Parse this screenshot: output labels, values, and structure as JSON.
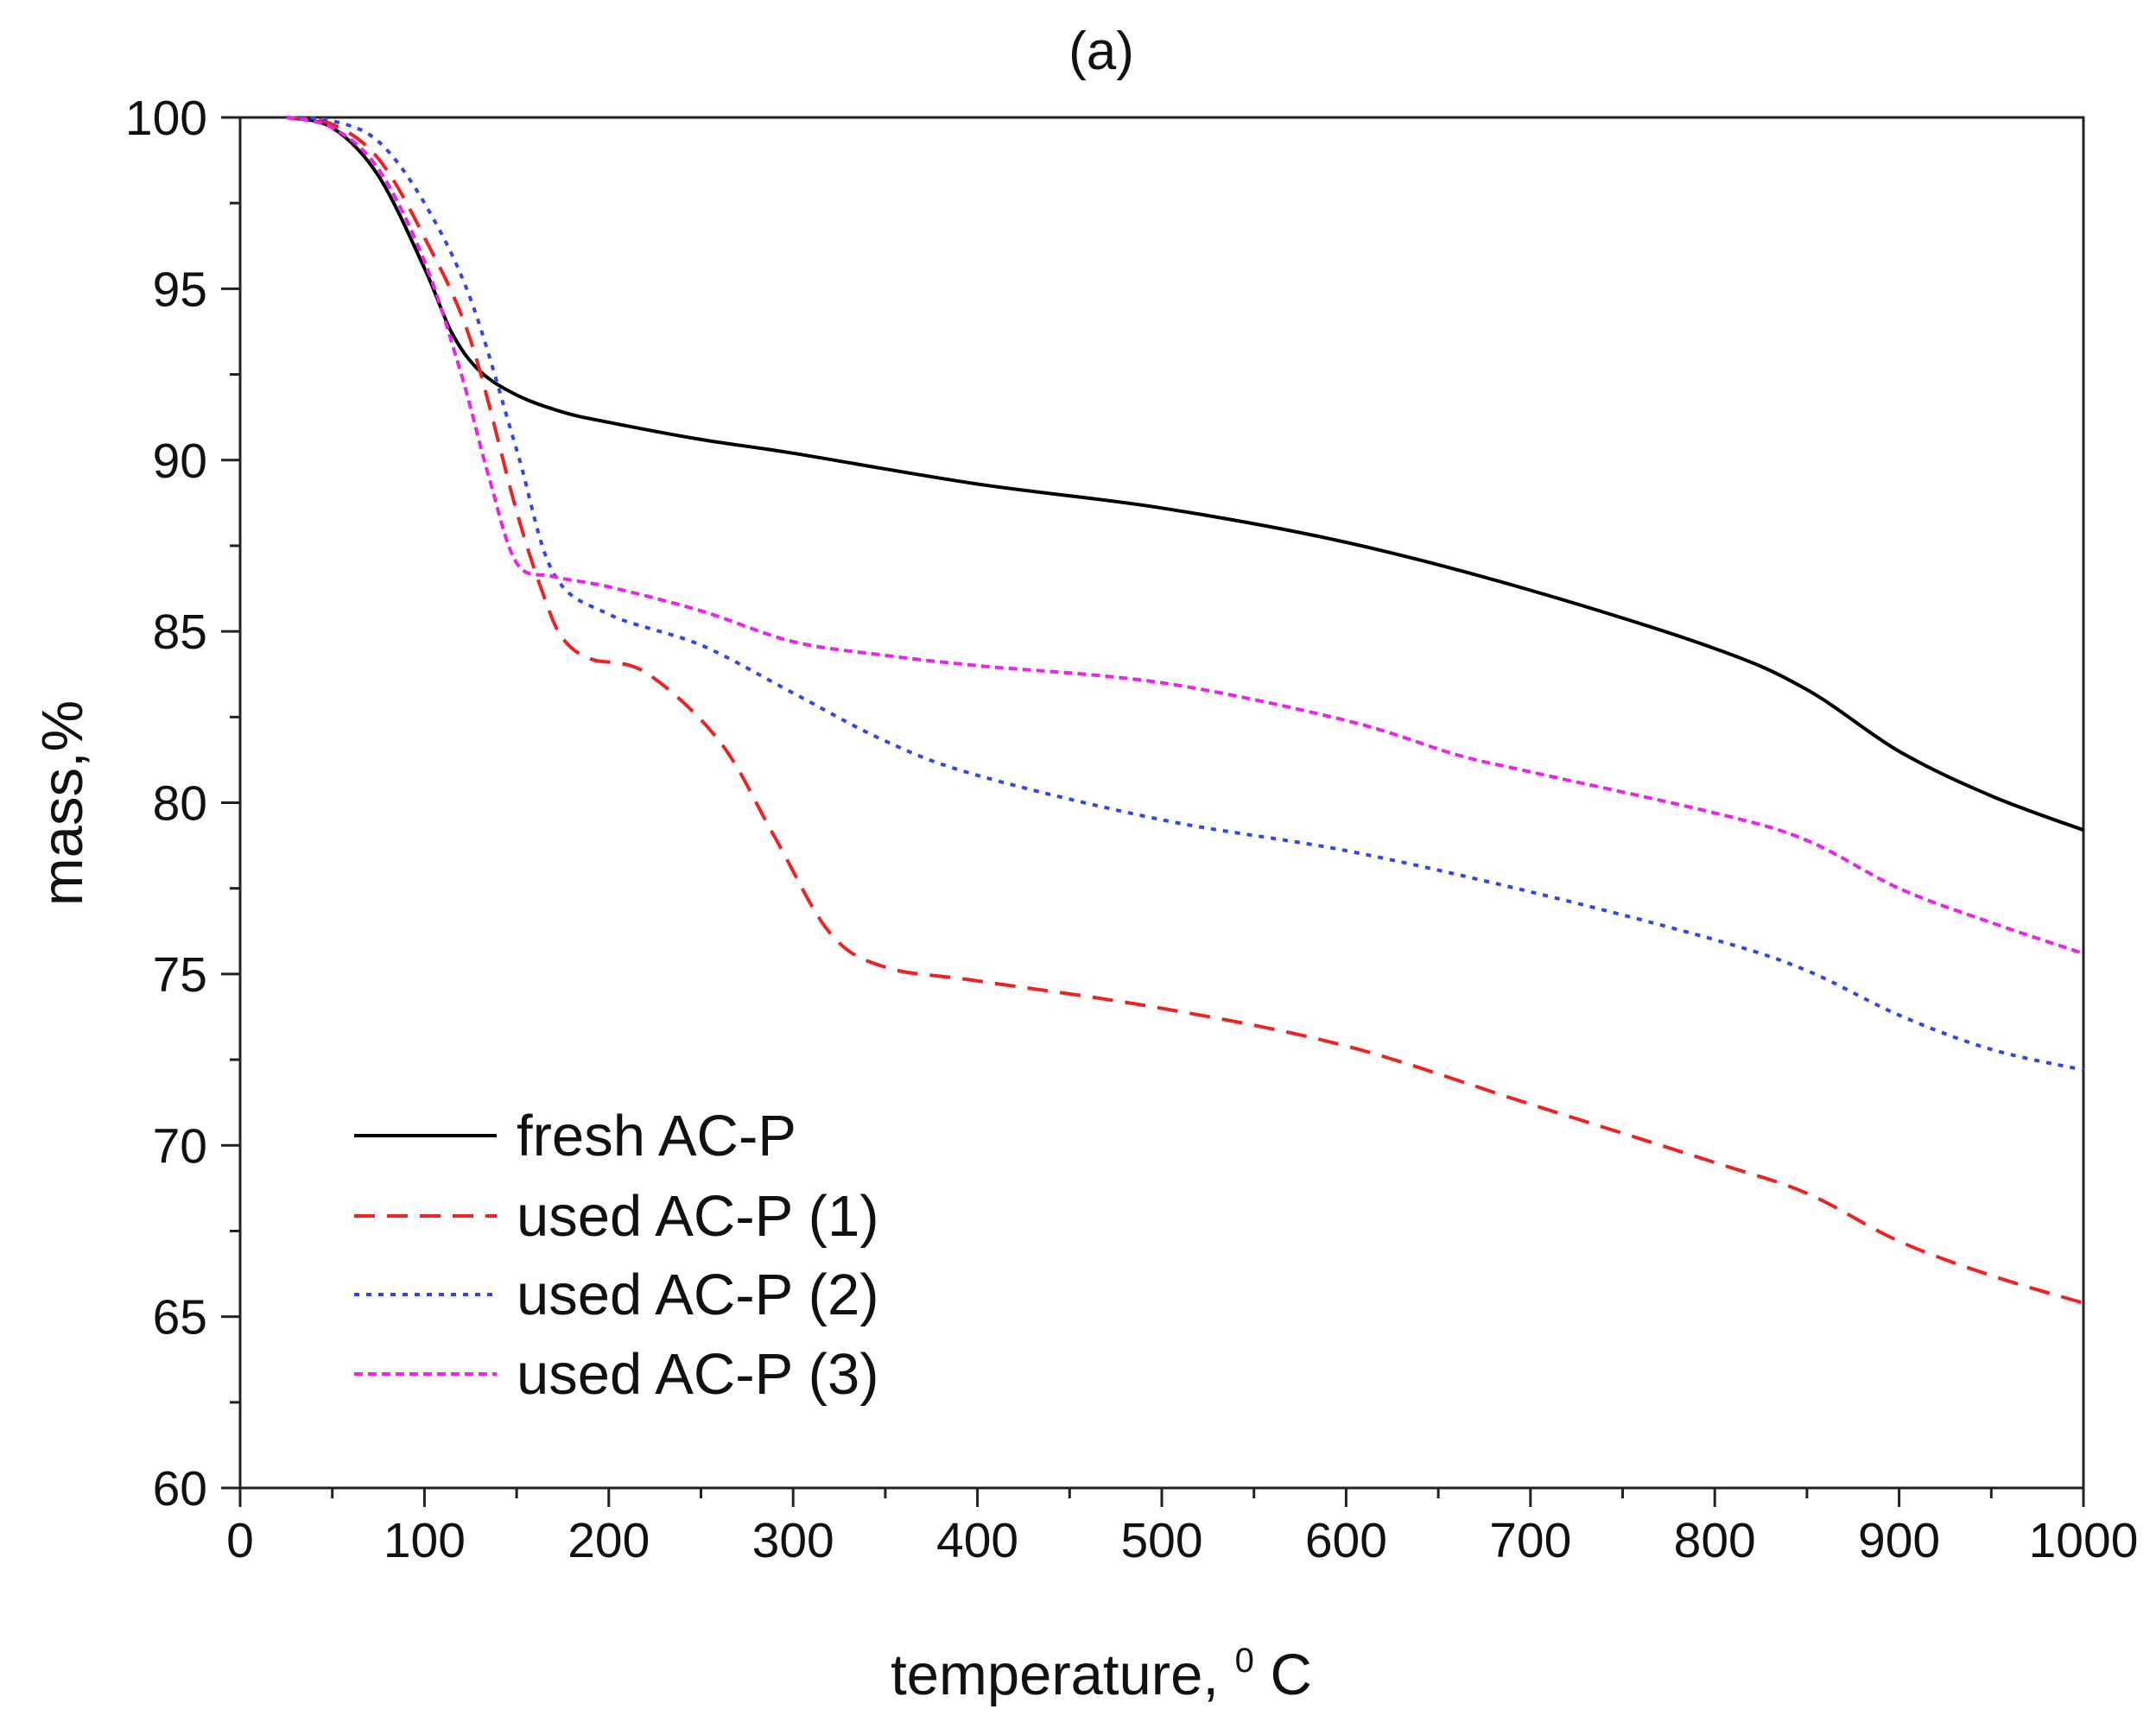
{
  "chart_data": {
    "type": "line",
    "title": "(a)",
    "xlabel": "temperature, ",
    "xlabel_sup": "0",
    "xlabel_unit": "C",
    "ylabel": "mass,%",
    "xlim": [
      0,
      1000
    ],
    "ylim": [
      60,
      100
    ],
    "x_ticks": [
      0,
      100,
      200,
      300,
      400,
      500,
      600,
      700,
      800,
      900,
      1000
    ],
    "y_ticks": [
      60,
      65,
      70,
      75,
      80,
      85,
      90,
      95,
      100
    ],
    "grid": false,
    "legend_position": "bottom-left",
    "series": [
      {
        "name": "fresh AC-P",
        "color": "#000000",
        "style": "solid",
        "points": [
          [
            25,
            100
          ],
          [
            50,
            99.7
          ],
          [
            75,
            98.3
          ],
          [
            100,
            95.6
          ],
          [
            115,
            93.7
          ],
          [
            130,
            92.6
          ],
          [
            150,
            91.9
          ],
          [
            175,
            91.4
          ],
          [
            200,
            91.1
          ],
          [
            250,
            90.6
          ],
          [
            300,
            90.2
          ],
          [
            400,
            89.3
          ],
          [
            500,
            88.6
          ],
          [
            600,
            87.6
          ],
          [
            700,
            86.2
          ],
          [
            800,
            84.5
          ],
          [
            850,
            83.3
          ],
          [
            900,
            81.5
          ],
          [
            950,
            80.2
          ],
          [
            1000,
            79.2
          ]
        ]
      },
      {
        "name": "used AC-P (1)",
        "color": "#ee2222",
        "style": "dashed",
        "points": [
          [
            25,
            100
          ],
          [
            50,
            99.8
          ],
          [
            75,
            98.8
          ],
          [
            100,
            96.5
          ],
          [
            125,
            93.5
          ],
          [
            150,
            88.5
          ],
          [
            165,
            86
          ],
          [
            175,
            84.8
          ],
          [
            190,
            84.2
          ],
          [
            220,
            83.8
          ],
          [
            260,
            81.8
          ],
          [
            290,
            79
          ],
          [
            320,
            76.2
          ],
          [
            350,
            75.2
          ],
          [
            400,
            74.8
          ],
          [
            500,
            74
          ],
          [
            600,
            72.9
          ],
          [
            700,
            71.2
          ],
          [
            800,
            69.5
          ],
          [
            850,
            68.6
          ],
          [
            900,
            67.2
          ],
          [
            950,
            66.2
          ],
          [
            1000,
            65.4
          ]
        ]
      },
      {
        "name": "used AC-P (2)",
        "color": "#3344ee",
        "style": "dotted",
        "points": [
          [
            25,
            100
          ],
          [
            50,
            99.9
          ],
          [
            75,
            99.3
          ],
          [
            100,
            97.5
          ],
          [
            125,
            94.7
          ],
          [
            150,
            90.3
          ],
          [
            170,
            86.7
          ],
          [
            200,
            85.5
          ],
          [
            250,
            84.6
          ],
          [
            300,
            83.2
          ],
          [
            350,
            81.8
          ],
          [
            400,
            80.8
          ],
          [
            500,
            79.5
          ],
          [
            600,
            78.6
          ],
          [
            700,
            77.4
          ],
          [
            800,
            76
          ],
          [
            850,
            75.1
          ],
          [
            900,
            73.8
          ],
          [
            950,
            72.8
          ],
          [
            1000,
            72.2
          ]
        ]
      },
      {
        "name": "used AC-P (3)",
        "color": "#ee22ee",
        "style": "short-dashed",
        "points": [
          [
            25,
            100
          ],
          [
            50,
            99.7
          ],
          [
            75,
            98.5
          ],
          [
            100,
            95.8
          ],
          [
            120,
            92.5
          ],
          [
            135,
            89.5
          ],
          [
            150,
            87
          ],
          [
            170,
            86.6
          ],
          [
            200,
            86.3
          ],
          [
            250,
            85.6
          ],
          [
            300,
            84.7
          ],
          [
            350,
            84.3
          ],
          [
            400,
            84
          ],
          [
            500,
            83.5
          ],
          [
            600,
            82.4
          ],
          [
            660,
            81.4
          ],
          [
            700,
            80.9
          ],
          [
            800,
            79.7
          ],
          [
            850,
            78.9
          ],
          [
            900,
            77.5
          ],
          [
            950,
            76.5
          ],
          [
            1000,
            75.6
          ]
        ]
      }
    ]
  }
}
